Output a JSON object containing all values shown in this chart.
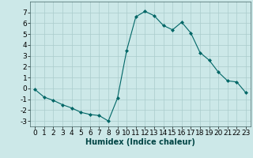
{
  "x": [
    0,
    1,
    2,
    3,
    4,
    5,
    6,
    7,
    8,
    9,
    10,
    11,
    12,
    13,
    14,
    15,
    16,
    17,
    18,
    19,
    20,
    21,
    22,
    23
  ],
  "y": [
    -0.1,
    -0.8,
    -1.1,
    -1.5,
    -1.8,
    -2.2,
    -2.4,
    -2.5,
    -3.0,
    -0.9,
    3.5,
    6.6,
    7.1,
    6.7,
    5.8,
    5.4,
    6.1,
    5.1,
    3.3,
    2.6,
    1.5,
    0.7,
    0.6,
    -0.4
  ],
  "line_color": "#006666",
  "marker": "D",
  "marker_size": 2,
  "bg_color": "#cce8e8",
  "grid_color": "#aacccc",
  "xlabel": "Humidex (Indice chaleur)",
  "xlim": [
    -0.5,
    23.5
  ],
  "ylim": [
    -3.5,
    8.0
  ],
  "yticks": [
    -3,
    -2,
    -1,
    0,
    1,
    2,
    3,
    4,
    5,
    6,
    7
  ],
  "xticks": [
    0,
    1,
    2,
    3,
    4,
    5,
    6,
    7,
    8,
    9,
    10,
    11,
    12,
    13,
    14,
    15,
    16,
    17,
    18,
    19,
    20,
    21,
    22,
    23
  ],
  "label_fontsize": 7,
  "tick_fontsize": 6.5
}
